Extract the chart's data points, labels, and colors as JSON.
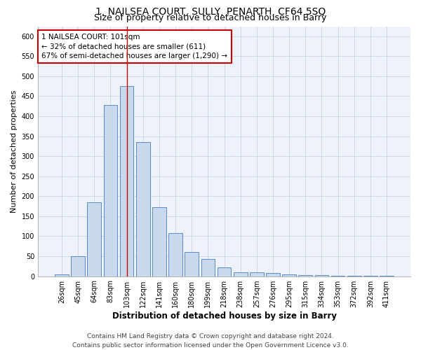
{
  "title": "1, NAILSEA COURT, SULLY, PENARTH, CF64 5SQ",
  "subtitle": "Size of property relative to detached houses in Barry",
  "xlabel": "Distribution of detached houses by size in Barry",
  "ylabel": "Number of detached properties",
  "categories": [
    "26sqm",
    "45sqm",
    "64sqm",
    "83sqm",
    "103sqm",
    "122sqm",
    "141sqm",
    "160sqm",
    "180sqm",
    "199sqm",
    "218sqm",
    "238sqm",
    "257sqm",
    "276sqm",
    "295sqm",
    "315sqm",
    "334sqm",
    "353sqm",
    "372sqm",
    "392sqm",
    "411sqm"
  ],
  "values": [
    5,
    50,
    185,
    428,
    475,
    335,
    172,
    107,
    60,
    43,
    22,
    10,
    10,
    8,
    5,
    3,
    2,
    1,
    1,
    1,
    1
  ],
  "bar_color": "#c8d9ee",
  "bar_edge_color": "#5b8ac5",
  "vline_x_index": 4,
  "vline_color": "#cc0000",
  "annotation_text": "1 NAILSEA COURT: 101sqm\n← 32% of detached houses are smaller (611)\n67% of semi-detached houses are larger (1,290) →",
  "annotation_box_color": "#ffffff",
  "annotation_box_edge": "#cc0000",
  "ylim": [
    0,
    625
  ],
  "yticks": [
    0,
    50,
    100,
    150,
    200,
    250,
    300,
    350,
    400,
    450,
    500,
    550,
    600
  ],
  "grid_color": "#c8d4e8",
  "background_color": "#eef2fa",
  "footer_line1": "Contains HM Land Registry data © Crown copyright and database right 2024.",
  "footer_line2": "Contains public sector information licensed under the Open Government Licence v3.0.",
  "title_fontsize": 10,
  "subtitle_fontsize": 9,
  "xlabel_fontsize": 8.5,
  "ylabel_fontsize": 8,
  "tick_fontsize": 7,
  "footer_fontsize": 6.5,
  "annotation_fontsize": 7.5
}
